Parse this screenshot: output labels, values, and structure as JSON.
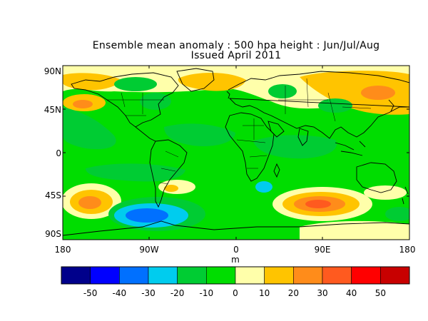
{
  "title": {
    "line1": "Ensemble mean anomaly : 500 hpa height : Jun/Jul/Aug",
    "line2": "Issued April 2011"
  },
  "map": {
    "lat_labels": [
      "90N",
      "45N",
      "0",
      "45S",
      "90S"
    ],
    "lon_labels": [
      "180",
      "90W",
      "0",
      "90E",
      "180"
    ],
    "unit": "m",
    "background_color": "#00dd00"
  },
  "colorbar": {
    "colors": [
      "#00008b",
      "#0000ff",
      "#0070ff",
      "#00ccee",
      "#00cc33",
      "#00dd00",
      "#ffffaa",
      "#ffc400",
      "#ff8c1a",
      "#ff5a1f",
      "#ff0000",
      "#c80000"
    ],
    "labels": [
      "-50",
      "-40",
      "-30",
      "-20",
      "-10",
      "0",
      "10",
      "20",
      "30",
      "40",
      "50"
    ]
  }
}
